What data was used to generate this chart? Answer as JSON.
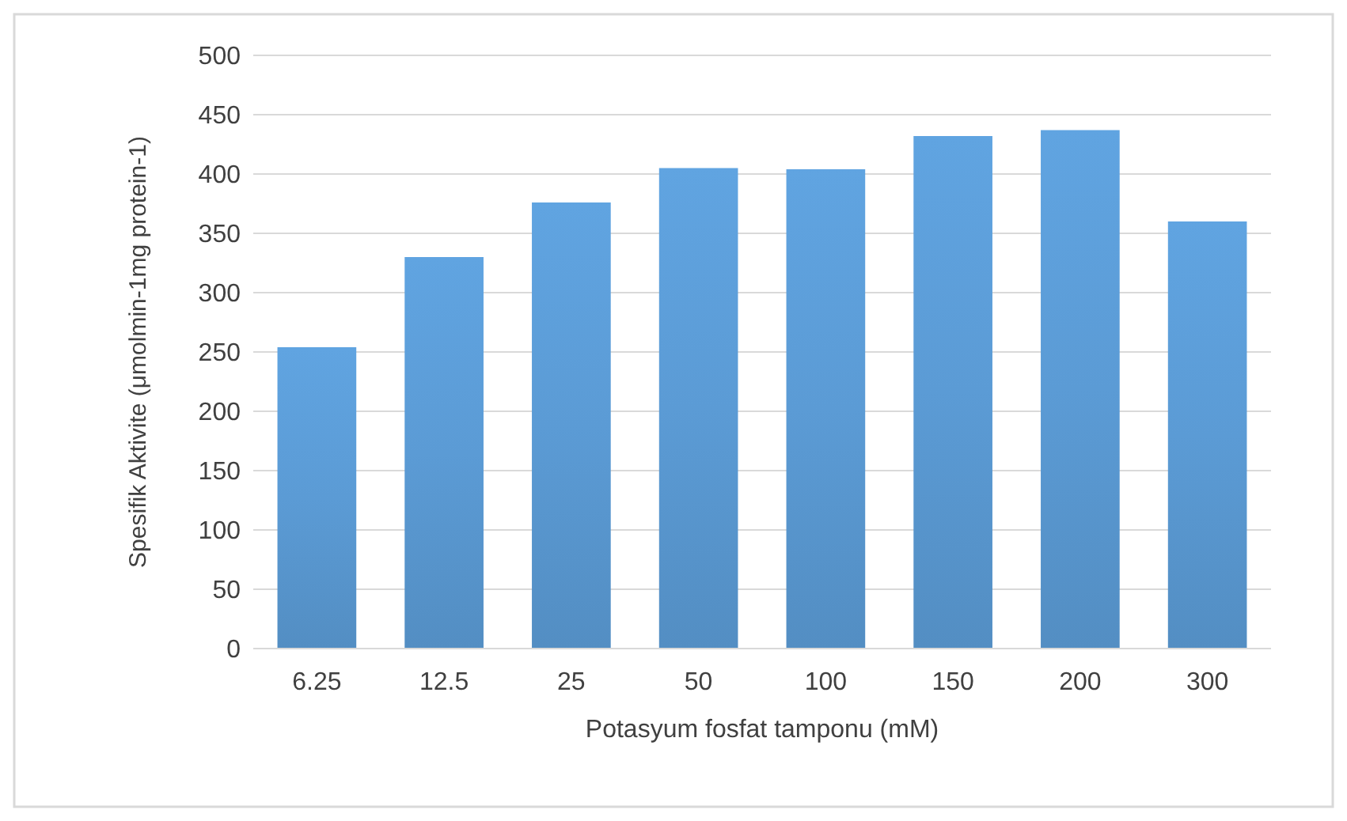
{
  "chart_data": {
    "type": "bar",
    "xlabel": "Potasyum fosfat tamponu (mM)",
    "ylabel": "Spesifik Aktivite  (μmolmin-1mg protein-1)",
    "categories": [
      "6.25",
      "12.5",
      "25",
      "50",
      "100",
      "150",
      "200",
      "300"
    ],
    "values": [
      254,
      330,
      376,
      405,
      404,
      432,
      437,
      360
    ],
    "color": "#5b9bd5",
    "ylim": [
      0,
      500
    ],
    "yticks": [
      0,
      50,
      100,
      150,
      200,
      250,
      300,
      350,
      400,
      450,
      500
    ],
    "grid": "y"
  }
}
